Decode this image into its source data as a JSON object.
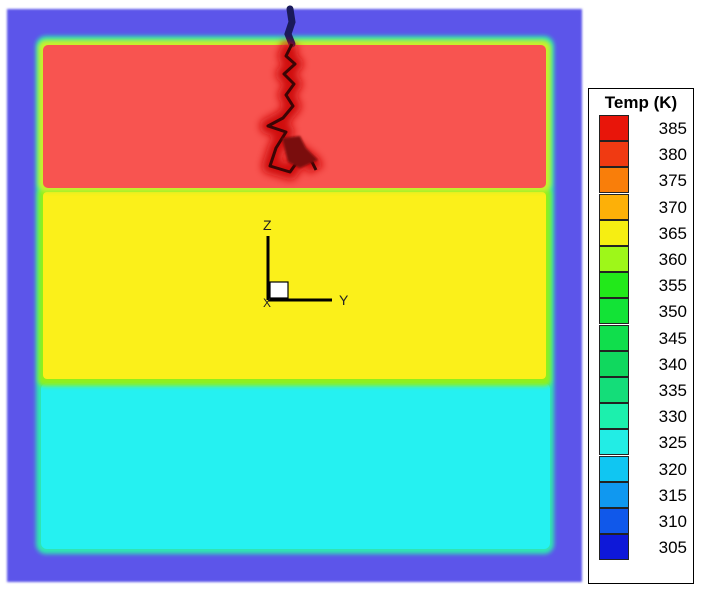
{
  "chart_data": {
    "type": "heatmap",
    "title": "",
    "legend": {
      "title": "Temp (K)",
      "placement": "right",
      "levels": [
        {
          "value": 385,
          "color": "#e8150a"
        },
        {
          "value": 380,
          "color": "#f03a12"
        },
        {
          "value": 375,
          "color": "#f97e0a"
        },
        {
          "value": 370,
          "color": "#fdb008"
        },
        {
          "value": 365,
          "color": "#f6ee12"
        },
        {
          "value": 360,
          "color": "#9ef719"
        },
        {
          "value": 355,
          "color": "#22e91a"
        },
        {
          "value": 350,
          "color": "#12e336"
        },
        {
          "value": 345,
          "color": "#10de4c"
        },
        {
          "value": 340,
          "color": "#10d85e"
        },
        {
          "value": 335,
          "color": "#14dd79"
        },
        {
          "value": 330,
          "color": "#1cf0ad"
        },
        {
          "value": 325,
          "color": "#22ede5"
        },
        {
          "value": 320,
          "color": "#10c6f2"
        },
        {
          "value": 315,
          "color": "#1098f0"
        },
        {
          "value": 310,
          "color": "#1058ea"
        },
        {
          "value": 305,
          "color": "#0e18d8"
        }
      ]
    },
    "regions": [
      {
        "name": "top layer",
        "temperature_K": 385,
        "color": "#f85450"
      },
      {
        "name": "middle layer",
        "temperature_K": 370,
        "color": "#fbf01a"
      },
      {
        "name": "bottom layer",
        "temperature_K": 320,
        "color": "#25f1f1"
      },
      {
        "name": "boundary frame",
        "temperature_K": 305,
        "color": "#5b54ea"
      }
    ],
    "axes_triad": {
      "labels": [
        "Z",
        "Y",
        "X"
      ]
    }
  }
}
